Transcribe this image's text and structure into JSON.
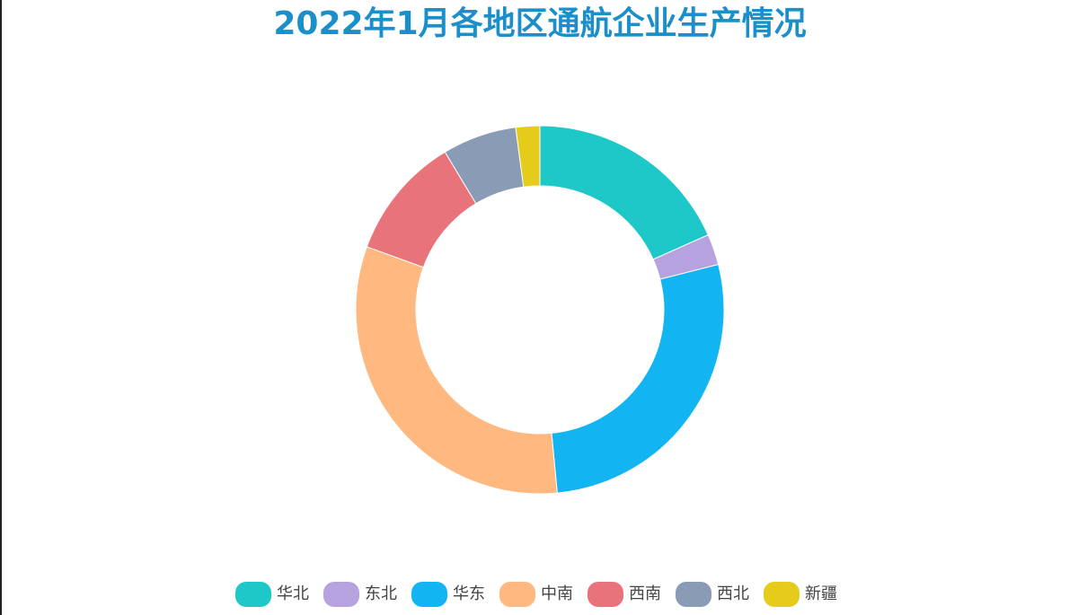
{
  "chart_data": {
    "type": "donut",
    "title": "2022年1月各地区通航企业生产情况",
    "categories": [
      "华北",
      "东北",
      "华东",
      "中南",
      "西南",
      "西北",
      "新疆"
    ],
    "values": [
      18.3,
      2.7,
      27.4,
      32.0,
      10.8,
      6.5,
      2.1
    ],
    "colors": [
      "#1fc8c8",
      "#b6a2de",
      "#12b5f2",
      "#ffb980",
      "#e8737a",
      "#8a9bb5",
      "#e5cc1a"
    ],
    "legend": "bottom"
  }
}
